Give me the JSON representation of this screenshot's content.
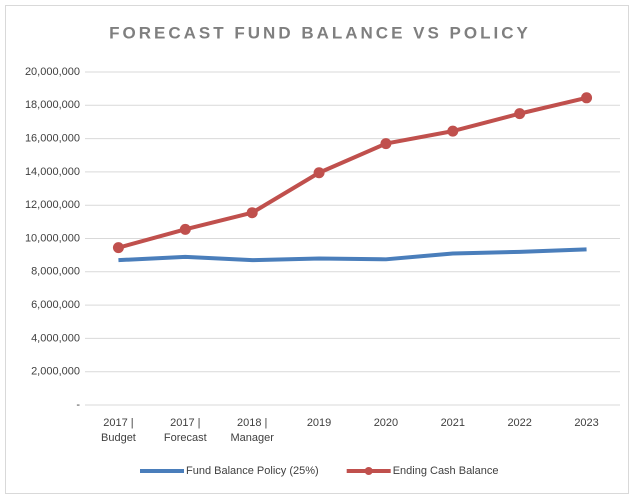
{
  "chart_data": {
    "type": "line",
    "title": "FORECAST FUND BALANCE VS POLICY",
    "categories": [
      "2017 |\nBudget",
      "2017 |\nForecast",
      "2018 |\nManager",
      "2019",
      "2020",
      "2021",
      "2022",
      "2023"
    ],
    "series": [
      {
        "name": "Fund Balance Policy (25%)",
        "color": "#4a7ebb",
        "markers": false,
        "values": [
          8700000,
          8900000,
          8700000,
          8800000,
          8750000,
          9100000,
          9200000,
          9350000
        ]
      },
      {
        "name": "Ending Cash Balance",
        "color": "#c0504d",
        "markers": true,
        "values": [
          9450000,
          10550000,
          11550000,
          13950000,
          15700000,
          16450000,
          17500000,
          18450000
        ]
      }
    ],
    "ylim": [
      0,
      20000000
    ],
    "yticks": [
      {
        "value": 0,
        "label": "-"
      },
      {
        "value": 2000000,
        "label": "2,000,000"
      },
      {
        "value": 4000000,
        "label": "4,000,000"
      },
      {
        "value": 6000000,
        "label": "6,000,000"
      },
      {
        "value": 8000000,
        "label": "8,000,000"
      },
      {
        "value": 10000000,
        "label": "10,000,000"
      },
      {
        "value": 12000000,
        "label": "12,000,000"
      },
      {
        "value": 14000000,
        "label": "14,000,000"
      },
      {
        "value": 16000000,
        "label": "16,000,000"
      },
      {
        "value": 18000000,
        "label": "18,000,000"
      },
      {
        "value": 20000000,
        "label": "20,000,000"
      }
    ],
    "grid": true,
    "legend": "bottom"
  }
}
